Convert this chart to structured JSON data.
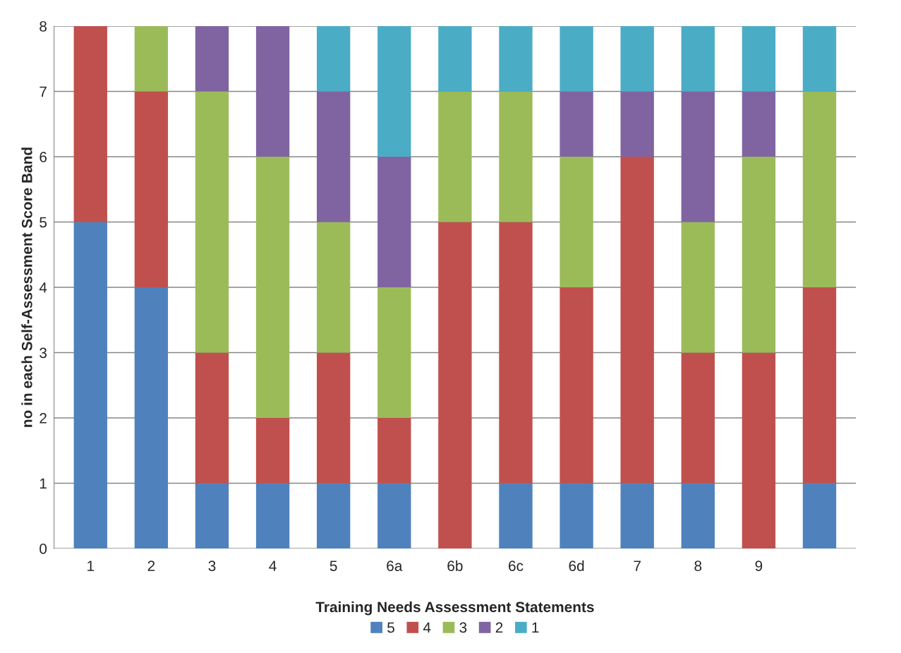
{
  "chart_data": {
    "type": "bar",
    "stacked": true,
    "xlabel": "Training Needs Assessment Statements",
    "ylabel": "no in each Self-Assessment Score Band",
    "categories": [
      "1",
      "2",
      "3",
      "4",
      "5",
      "6a",
      "6b",
      "6c",
      "6d",
      "7",
      "8",
      "9",
      null
    ],
    "series": [
      {
        "name": "5",
        "color": "#4f81bd",
        "values": [
          5,
          4,
          1,
          1,
          1,
          1,
          0,
          1,
          1,
          1,
          1,
          0,
          1
        ]
      },
      {
        "name": "4",
        "color": "#c0504d",
        "values": [
          3,
          3,
          2,
          1,
          2,
          1,
          5,
          4,
          3,
          5,
          2,
          3,
          3
        ]
      },
      {
        "name": "3",
        "color": "#9bbb59",
        "values": [
          0,
          1,
          4,
          4,
          2,
          2,
          2,
          2,
          2,
          0,
          2,
          3,
          3
        ]
      },
      {
        "name": "2",
        "color": "#8064a2",
        "values": [
          0,
          0,
          1,
          2,
          2,
          2,
          0,
          0,
          1,
          1,
          2,
          1,
          0
        ]
      },
      {
        "name": "1",
        "color": "#4bacc6",
        "values": [
          0,
          0,
          0,
          0,
          1,
          2,
          1,
          1,
          1,
          1,
          1,
          1,
          1
        ]
      }
    ],
    "ylim": [
      0,
      8
    ],
    "yticks": [
      0,
      1,
      2,
      3,
      4,
      5,
      6,
      7,
      8
    ],
    "grid": "y",
    "legend": "bottom"
  }
}
